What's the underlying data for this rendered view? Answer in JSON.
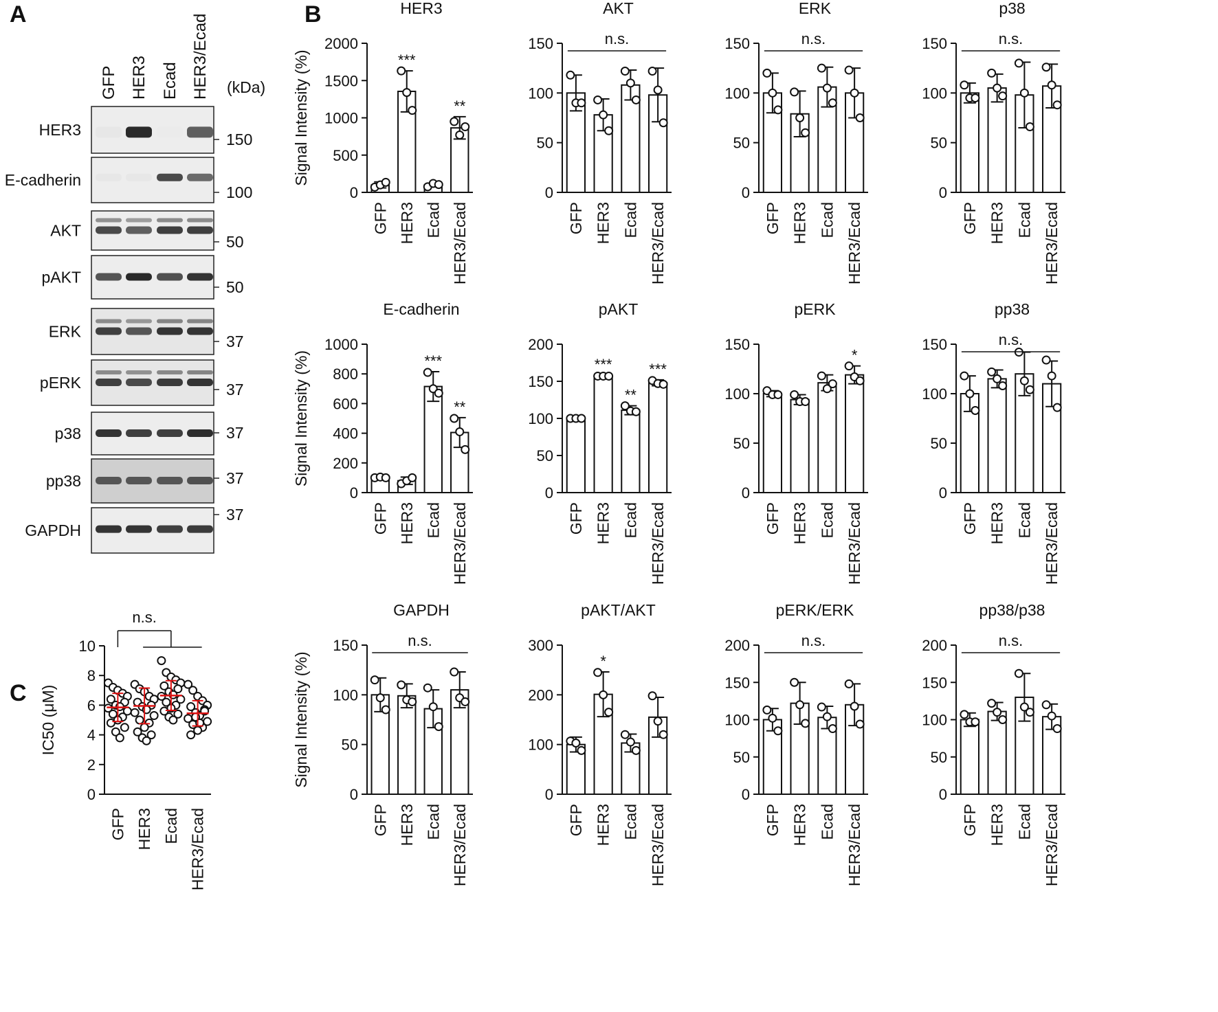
{
  "panel_labels": {
    "a": "A",
    "b": "B",
    "c": "C"
  },
  "western_blot": {
    "lanes": [
      "GFP",
      "HER3",
      "Ecad",
      "HER3/Ecad"
    ],
    "kda_label": "(kDa)",
    "blots": [
      {
        "label": "HER3",
        "marker": "150",
        "intensities": [
          0.02,
          0.9,
          0.0,
          0.65
        ]
      },
      {
        "label": "E-cadherin",
        "marker": "100",
        "intensities": [
          0.02,
          0.02,
          0.75,
          0.6
        ]
      },
      {
        "label": "AKT",
        "marker": "50",
        "intensities": [
          0.75,
          0.65,
          0.8,
          0.8
        ]
      },
      {
        "label": "pAKT",
        "marker": "50",
        "intensities": [
          0.7,
          0.9,
          0.72,
          0.85
        ]
      },
      {
        "label": "ERK",
        "marker": "37",
        "intensities": [
          0.8,
          0.7,
          0.85,
          0.85
        ]
      },
      {
        "label": "pERK",
        "marker": "37",
        "intensities": [
          0.8,
          0.75,
          0.82,
          0.85
        ]
      },
      {
        "label": "p38",
        "marker": "37",
        "intensities": [
          0.85,
          0.8,
          0.8,
          0.88
        ]
      },
      {
        "label": "pp38",
        "marker": "37",
        "intensities": [
          0.7,
          0.7,
          0.7,
          0.72
        ]
      },
      {
        "label": "GAPDH",
        "marker": "37",
        "intensities": [
          0.85,
          0.85,
          0.8,
          0.82
        ]
      }
    ]
  },
  "chart_data": [
    {
      "type": "bar",
      "id": "her3",
      "title": "HER3",
      "ylabel": "Signal Intensity (%)",
      "ylim": [
        0,
        2000
      ],
      "ticks": [
        0,
        500,
        1000,
        1500,
        2000
      ],
      "categories": [
        "GFP",
        "HER3",
        "Ecad",
        "HER3/Ecad"
      ],
      "values": [
        100,
        1355,
        100,
        865
      ],
      "sd": [
        40,
        275,
        25,
        150
      ],
      "points": [
        [
          70,
          100,
          135
        ],
        [
          1630,
          1340,
          1100
        ],
        [
          75,
          120,
          105
        ],
        [
          950,
          770,
          880
        ]
      ],
      "significance": [
        "",
        "***",
        "",
        "**"
      ],
      "comparison": null
    },
    {
      "type": "bar",
      "id": "akt",
      "title": "AKT",
      "ylabel": "",
      "ylim": [
        0,
        150
      ],
      "ticks": [
        0,
        50,
        100,
        150
      ],
      "categories": [
        "GFP",
        "HER3",
        "Ecad",
        "HER3/Ecad"
      ],
      "values": [
        100,
        78,
        108,
        98
      ],
      "sd": [
        18,
        16,
        15,
        27
      ],
      "points": [
        [
          118,
          90,
          90
        ],
        [
          93,
          78,
          62
        ],
        [
          122,
          110,
          93
        ],
        [
          122,
          103,
          70
        ]
      ],
      "significance": [
        "",
        "",
        "",
        ""
      ],
      "comparison": "n.s."
    },
    {
      "type": "bar",
      "id": "erk",
      "title": "ERK",
      "ylabel": "",
      "ylim": [
        0,
        150
      ],
      "ticks": [
        0,
        50,
        100,
        150
      ],
      "categories": [
        "GFP",
        "HER3",
        "Ecad",
        "HER3/Ecad"
      ],
      "values": [
        100,
        79,
        106,
        100
      ],
      "sd": [
        20,
        23,
        20,
        25
      ],
      "points": [
        [
          120,
          100,
          83
        ],
        [
          101,
          75,
          60
        ],
        [
          125,
          105,
          90
        ],
        [
          123,
          100,
          75
        ]
      ],
      "significance": [
        "",
        "",
        "",
        ""
      ],
      "comparison": "n.s."
    },
    {
      "type": "bar",
      "id": "p38",
      "title": "p38",
      "ylabel": "",
      "ylim": [
        0,
        150
      ],
      "ticks": [
        0,
        50,
        100,
        150
      ],
      "categories": [
        "GFP",
        "HER3",
        "Ecad",
        "HER3/Ecad"
      ],
      "values": [
        100,
        105,
        98,
        107
      ],
      "sd": [
        10,
        14,
        33,
        22
      ],
      "points": [
        [
          108,
          95,
          95
        ],
        [
          120,
          105,
          97
        ],
        [
          130,
          100,
          66
        ],
        [
          126,
          108,
          88
        ]
      ],
      "significance": [
        "",
        "",
        "",
        ""
      ],
      "comparison": "n.s."
    },
    {
      "type": "bar",
      "id": "ecad",
      "title": "E-cadherin",
      "ylabel": "Signal Intensity (%)",
      "ylim": [
        0,
        1000
      ],
      "ticks": [
        0,
        200,
        400,
        600,
        800,
        1000
      ],
      "categories": [
        "GFP",
        "HER3",
        "Ecad",
        "HER3/Ecad"
      ],
      "values": [
        100,
        80,
        715,
        405
      ],
      "sd": [
        10,
        25,
        100,
        100
      ],
      "points": [
        [
          100,
          105,
          100
        ],
        [
          60,
          80,
          100
        ],
        [
          810,
          700,
          670
        ],
        [
          500,
          410,
          290
        ]
      ],
      "significance": [
        "",
        "",
        "***",
        "**"
      ],
      "comparison": null
    },
    {
      "type": "bar",
      "id": "pakt",
      "title": "pAKT",
      "ylabel": "",
      "ylim": [
        0,
        200
      ],
      "ticks": [
        0,
        50,
        100,
        150,
        200
      ],
      "categories": [
        "GFP",
        "HER3",
        "Ecad",
        "HER3/Ecad"
      ],
      "values": [
        100,
        157,
        111,
        148
      ],
      "sd": [
        2,
        1.5,
        6,
        4
      ],
      "points": [
        [
          100,
          100,
          100
        ],
        [
          157,
          157,
          157
        ],
        [
          117,
          110,
          109
        ],
        [
          151,
          147,
          146
        ]
      ],
      "significance": [
        "",
        "***",
        "**",
        "***"
      ],
      "comparison": null
    },
    {
      "type": "bar",
      "id": "perk",
      "title": "pERK",
      "ylabel": "",
      "ylim": [
        0,
        150
      ],
      "ticks": [
        0,
        50,
        100,
        150
      ],
      "categories": [
        "GFP",
        "HER3",
        "Ecad",
        "HER3/Ecad"
      ],
      "values": [
        100,
        94,
        111,
        119
      ],
      "sd": [
        3,
        5,
        8,
        9
      ],
      "points": [
        [
          103,
          99,
          99
        ],
        [
          99,
          92,
          92
        ],
        [
          118,
          105,
          110
        ],
        [
          128,
          117,
          113
        ]
      ],
      "significance": [
        "",
        "",
        "",
        "*"
      ],
      "comparison": null
    },
    {
      "type": "bar",
      "id": "pp38",
      "title": "pp38",
      "ylabel": "",
      "ylim": [
        0,
        150
      ],
      "ticks": [
        0,
        50,
        100,
        150
      ],
      "categories": [
        "GFP",
        "HER3",
        "Ecad",
        "HER3/Ecad"
      ],
      "values": [
        100,
        115,
        120,
        110
      ],
      "sd": [
        18,
        9,
        22,
        23
      ],
      "points": [
        [
          118,
          100,
          83
        ],
        [
          122,
          115,
          108
        ],
        [
          142,
          113,
          104
        ],
        [
          134,
          118,
          86
        ]
      ],
      "significance": [
        "",
        "",
        "",
        ""
      ],
      "comparison": "n.s."
    },
    {
      "type": "bar",
      "id": "gapdh",
      "title": "GAPDH",
      "ylabel": "Signal Intensity (%)",
      "ylim": [
        0,
        150
      ],
      "ticks": [
        0,
        50,
        100,
        150
      ],
      "categories": [
        "GFP",
        "HER3",
        "Ecad",
        "HER3/Ecad"
      ],
      "values": [
        100,
        99,
        86,
        105
      ],
      "sd": [
        17,
        12,
        19,
        18
      ],
      "points": [
        [
          115,
          97,
          85
        ],
        [
          110,
          95,
          93
        ],
        [
          107,
          88,
          68
        ],
        [
          123,
          97,
          93
        ]
      ],
      "significance": [
        "",
        "",
        "",
        ""
      ],
      "comparison": "n.s."
    },
    {
      "type": "bar",
      "id": "paktakt",
      "title": "pAKT/AKT",
      "ylabel": "",
      "ylim": [
        0,
        300
      ],
      "ticks": [
        0,
        100,
        200,
        300
      ],
      "categories": [
        "GFP",
        "HER3",
        "Ecad",
        "HER3/Ecad"
      ],
      "values": [
        100,
        201,
        103,
        155
      ],
      "sd": [
        15,
        45,
        18,
        40
      ],
      "points": [
        [
          107,
          103,
          88
        ],
        [
          245,
          200,
          165
        ],
        [
          120,
          105,
          88
        ],
        [
          198,
          147,
          120
        ]
      ],
      "significance": [
        "",
        "*",
        "",
        ""
      ],
      "comparison": null
    },
    {
      "type": "bar",
      "id": "perkerk",
      "title": "pERK/ERK",
      "ylabel": "",
      "ylim": [
        0,
        200
      ],
      "ticks": [
        0,
        50,
        100,
        150,
        200
      ],
      "categories": [
        "GFP",
        "HER3",
        "Ecad",
        "HER3/Ecad"
      ],
      "values": [
        100,
        122,
        103,
        120
      ],
      "sd": [
        15,
        28,
        15,
        28
      ],
      "points": [
        [
          113,
          102,
          85
        ],
        [
          150,
          120,
          95
        ],
        [
          117,
          104,
          88
        ],
        [
          148,
          118,
          94
        ]
      ],
      "significance": [
        "",
        "",
        "",
        ""
      ],
      "comparison": "n.s."
    },
    {
      "type": "bar",
      "id": "pp38p38",
      "title": "pp38/p38",
      "ylabel": "",
      "ylim": [
        0,
        200
      ],
      "ticks": [
        0,
        50,
        100,
        150,
        200
      ],
      "categories": [
        "GFP",
        "HER3",
        "Ecad",
        "HER3/Ecad"
      ],
      "values": [
        100,
        111,
        130,
        104
      ],
      "sd": [
        9,
        12,
        32,
        17
      ],
      "points": [
        [
          107,
          97,
          97
        ],
        [
          122,
          110,
          100
        ],
        [
          162,
          117,
          110
        ],
        [
          120,
          105,
          88
        ]
      ],
      "significance": [
        "",
        "",
        "",
        ""
      ],
      "comparison": "n.s."
    },
    {
      "type": "scatter",
      "id": "ic50",
      "title": "",
      "ylabel": "IC50 (μM)",
      "ylim": [
        0,
        10
      ],
      "ticks": [
        0,
        2,
        4,
        6,
        8,
        10
      ],
      "categories": [
        "GFP",
        "HER3",
        "Ecad",
        "HER3/Ecad"
      ],
      "means": [
        5.85,
        5.95,
        6.65,
        5.45
      ],
      "sd": [
        0.95,
        1.2,
        1.0,
        0.85
      ],
      "points": [
        [
          7.5,
          7.2,
          7.0,
          6.8,
          6.6,
          6.4,
          6.2,
          6.0,
          5.9,
          5.8,
          5.6,
          5.4,
          5.2,
          5.0,
          4.8,
          4.5,
          4.2,
          3.8
        ],
        [
          7.4,
          7.1,
          6.9,
          6.6,
          6.4,
          6.2,
          6.0,
          5.9,
          5.7,
          5.5,
          5.3,
          5.0,
          4.8,
          4.5,
          4.2,
          4.0,
          3.8,
          3.6
        ],
        [
          9.0,
          8.2,
          7.9,
          7.7,
          7.5,
          7.3,
          7.1,
          6.9,
          6.7,
          6.6,
          6.4,
          6.2,
          6.0,
          5.8,
          5.6,
          5.4,
          5.2,
          5.0
        ],
        [
          7.4,
          7.0,
          6.6,
          6.3,
          6.0,
          5.9,
          5.7,
          5.5,
          5.3,
          5.1,
          4.9,
          4.7,
          4.5,
          4.3,
          4.0,
          5.6,
          5.2,
          4.8
        ]
      ],
      "comparison": "n.s."
    }
  ]
}
